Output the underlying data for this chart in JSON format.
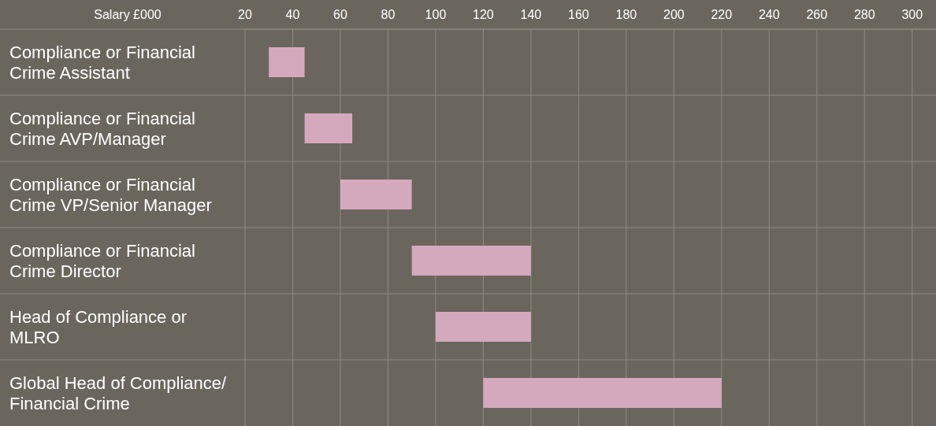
{
  "chart_data": {
    "type": "bar",
    "orientation": "horizontal",
    "xlabel": "Salary £000",
    "categories": [
      "Compliance or Financial Crime Assistant",
      "Compliance or Financial Crime AVP/Manager",
      "Compliance or Financial Crime VP/Senior Manager",
      "Compliance or Financial Crime Director",
      "Head of Compliance or MLRO",
      "Global Head of Compliance/ Financial Crime"
    ],
    "base": [
      30,
      45,
      60,
      90,
      100,
      120
    ],
    "values": [
      15,
      20,
      30,
      50,
      40,
      100
    ],
    "color": "#d4a9be",
    "xlim": [
      20,
      310
    ],
    "xticks": [
      20,
      40,
      60,
      80,
      100,
      120,
      140,
      160,
      180,
      200,
      220,
      240,
      260,
      280,
      300
    ],
    "grid": true
  }
}
